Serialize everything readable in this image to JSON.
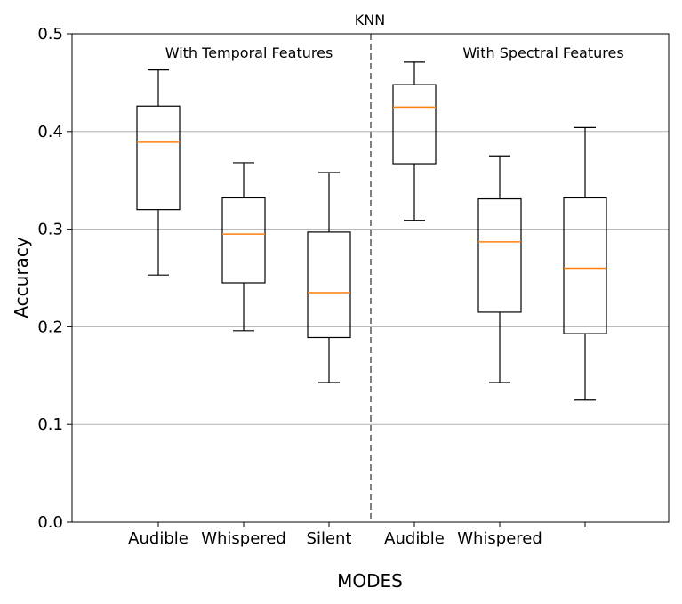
{
  "chart_data": {
    "type": "boxplot",
    "title": "KNN",
    "xlabel": "MODES",
    "ylabel": "Accuracy",
    "ylim": [
      0,
      0.5
    ],
    "yticks": [
      "0.0",
      "0.1",
      "0.2",
      "0.3",
      "0.4",
      "0.5"
    ],
    "grid": "horizontal",
    "colors": {
      "box": "#000000",
      "median": "#ff7f0e",
      "grid": "#b0b0b0",
      "divider": "#808080"
    },
    "annotations": [
      "With Temporal Features",
      "With Spectral Features"
    ],
    "boxes": [
      {
        "label": "Audible",
        "group": "With Temporal Features",
        "whislo": 0.253,
        "q1": 0.32,
        "median": 0.389,
        "q3": 0.426,
        "whishi": 0.463
      },
      {
        "label": "Whispered",
        "group": "With Temporal Features",
        "whislo": 0.196,
        "q1": 0.245,
        "median": 0.295,
        "q3": 0.332,
        "whishi": 0.368
      },
      {
        "label": "Silent",
        "group": "With Temporal Features",
        "whislo": 0.143,
        "q1": 0.189,
        "median": 0.235,
        "q3": 0.297,
        "whishi": 0.358
      },
      {
        "label": "Audible",
        "group": "With Spectral Features",
        "whislo": 0.309,
        "q1": 0.367,
        "median": 0.425,
        "q3": 0.448,
        "whishi": 0.471
      },
      {
        "label": "Whispered",
        "group": "With Spectral Features",
        "whislo": 0.143,
        "q1": 0.215,
        "median": 0.287,
        "q3": 0.331,
        "whishi": 0.375
      },
      {
        "label": "",
        "group": "With Spectral Features",
        "whislo": 0.125,
        "q1": 0.193,
        "median": 0.26,
        "q3": 0.332,
        "whishi": 0.404
      }
    ]
  }
}
